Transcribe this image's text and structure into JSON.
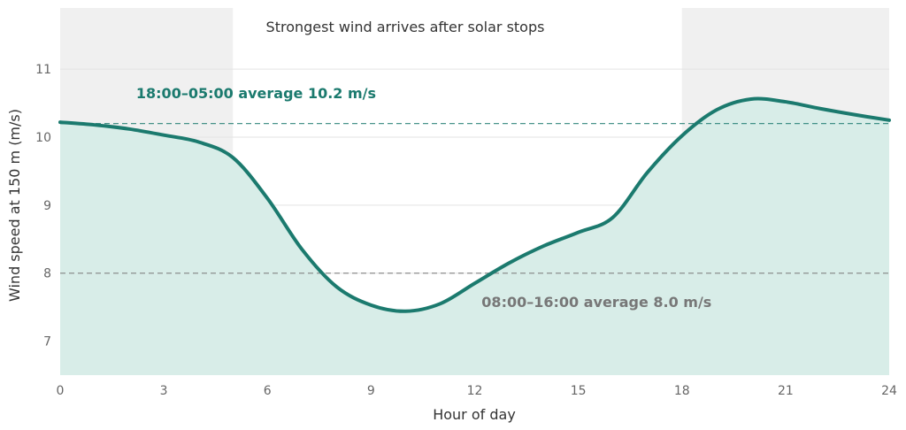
{
  "chart_data": {
    "type": "area",
    "title": "Strongest wind arrives after solar stops",
    "xlabel": "Hour of day",
    "ylabel": "Wind speed at 150 m (m/s)",
    "xlim": [
      0,
      24
    ],
    "ylim": [
      6.5,
      11.9
    ],
    "x_ticks": [
      0,
      3,
      6,
      9,
      12,
      15,
      18,
      21,
      24
    ],
    "y_ticks": [
      7,
      8,
      9,
      10,
      11
    ],
    "grid": "horizontal",
    "shaded_hours": [
      [
        0,
        5
      ],
      [
        18,
        24
      ]
    ],
    "series": [
      {
        "x": [
          0,
          1,
          2,
          3,
          4,
          5,
          6,
          7,
          8,
          9,
          10,
          11,
          12,
          13,
          14,
          15,
          16,
          17,
          18,
          19,
          20,
          21,
          22,
          23,
          24
        ],
        "y": [
          10.22,
          10.18,
          10.12,
          10.03,
          9.93,
          9.7,
          9.1,
          8.35,
          7.8,
          7.53,
          7.44,
          7.55,
          7.85,
          8.15,
          8.4,
          8.6,
          8.82,
          9.48,
          10.02,
          10.4,
          10.56,
          10.52,
          10.42,
          10.33,
          10.25
        ],
        "color": "#1b7a6e",
        "fill": "#d8ede8"
      }
    ],
    "reference_lines": [
      {
        "y": 10.2,
        "label": "18:00–05:00 average  10.2 m/s",
        "color": "#1b7a6e",
        "label_x": 2.2,
        "label_y": 10.65
      },
      {
        "y": 8.0,
        "label": "08:00–16:00 average  8.0 m/s",
        "color": "#777777",
        "label_x": 12.2,
        "label_y": 7.58
      }
    ]
  }
}
